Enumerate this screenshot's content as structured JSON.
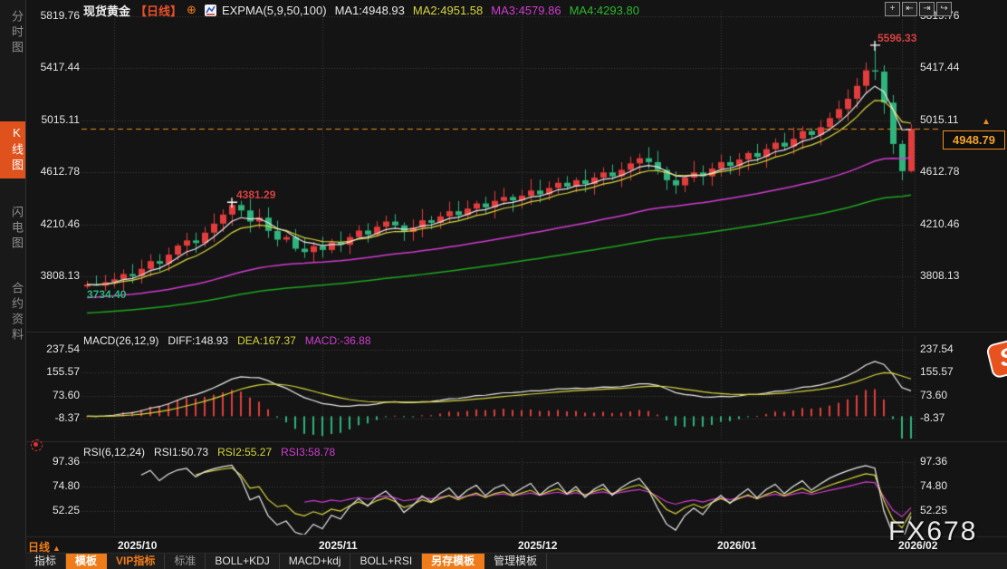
{
  "header": {
    "symbol": "现货黄金",
    "period_tag": "【日线】",
    "plus_icon": "⊕",
    "indicator_name": "EXPMA(5,9,50,100)",
    "ma1": "MA1:4948.93",
    "ma2": "MA2:4951.58",
    "ma3": "MA3:4579.86",
    "ma4": "MA4:4293.80"
  },
  "toolbar_icons": [
    {
      "name": "crosshair-icon",
      "glyph": "+"
    },
    {
      "name": "scale-left-icon",
      "glyph": "⇤"
    },
    {
      "name": "scale-right-icon",
      "glyph": "⇥"
    },
    {
      "name": "pan-right-icon",
      "glyph": "↪"
    }
  ],
  "sidebar": {
    "items": [
      {
        "label": "分时图",
        "active": false
      },
      {
        "label": "K线图",
        "active": true
      },
      {
        "label": "闪电图",
        "active": false
      },
      {
        "label": "合约资料",
        "active": false
      }
    ]
  },
  "main_chart": {
    "current_price": "4948.79",
    "price_marker_glyph": "▲",
    "annotations": {
      "high": {
        "label": "5596.33"
      },
      "oct_peak": {
        "label": "4381.29"
      },
      "start_low": {
        "label": "3734.40"
      }
    }
  },
  "macd": {
    "title": "MACD(26,12,9)",
    "diff_label": "DIFF:148.93",
    "dea_label": "DEA:167.37",
    "macd_label": "MACD:-36.88"
  },
  "rsi": {
    "title": "RSI(6,12,24)",
    "rsi1_label": "RSI1:50.73",
    "rsi2_label": "RSI2:55.27",
    "rsi3_label": "RSI3:58.78"
  },
  "x_axis": {
    "period_label": "日线",
    "period_arrow": "▲",
    "labels": [
      "2025/10",
      "2025/11",
      "2025/12",
      "2026/01",
      "2026/02"
    ]
  },
  "bottom_tabs": [
    {
      "label": "指标",
      "variant": "plain"
    },
    {
      "label": "模板",
      "variant": "active"
    },
    {
      "label": "VIP指标",
      "variant": "accent"
    },
    {
      "label": "标准",
      "variant": "muted"
    },
    {
      "label": "BOLL+KDJ",
      "variant": "plain"
    },
    {
      "label": "MACD+kdj",
      "variant": "plain"
    },
    {
      "label": "BOLL+RSI",
      "variant": "plain"
    },
    {
      "label": "另存模板",
      "variant": "active"
    },
    {
      "label": "管理模板",
      "variant": "plain"
    }
  ],
  "watermark": "FX678",
  "logo_letter": "S",
  "colors": {
    "up": "#e23d3c",
    "down": "#2eb47c",
    "ma1": "#e8e8e8",
    "ma2": "#d6d63e",
    "ma3": "#cf3ccf",
    "ma4": "#1fa51f",
    "accent_orange": "#ef7c1a",
    "price_line_orange": "#ef8c1e",
    "annotation_red": "#d84040",
    "annotation_green": "#2fb47d",
    "grid": "#3e3e3e",
    "background": "#141414"
  },
  "chart_data": {
    "type": "candlestick",
    "symbol": "现货黄金",
    "interval": "日线",
    "overlay_indicator": {
      "name": "EXPMA",
      "periods": [
        5,
        9,
        50,
        100
      ]
    },
    "sub_indicators": {
      "macd": [
        26,
        12,
        9
      ],
      "rsi": [
        6,
        12,
        24
      ]
    },
    "price_axis": [
      5819.76,
      5417.44,
      5015.11,
      4612.78,
      4210.46,
      3808.13
    ],
    "macd_axis": [
      237.54,
      155.57,
      73.6,
      -8.37
    ],
    "rsi_axis": [
      97.36,
      74.8,
      52.25
    ],
    "key_values": {
      "all_time_high": 5596.33,
      "oct_peak_high": 4381.29,
      "start_low": 3734.4,
      "last_price": 4948.79,
      "diff": 148.93,
      "dea": 167.37,
      "macd_bar": -36.88,
      "rsi1": 50.73,
      "rsi2": 55.27,
      "rsi3": 58.78
    },
    "month_start_indices": [
      3,
      26,
      48,
      70,
      90
    ],
    "closes": [
      3745,
      3736,
      3762,
      3785,
      3826,
      3810,
      3866,
      3926,
      3906,
      3976,
      4046,
      4086,
      4066,
      4146,
      4216,
      4286,
      4360,
      4318,
      4232,
      4262,
      4160,
      4092,
      4112,
      4022,
      3996,
      4042,
      4012,
      4072,
      4052,
      4112,
      4162,
      4132,
      4192,
      4232,
      4202,
      4152,
      4186,
      4242,
      4222,
      4272,
      4312,
      4282,
      4332,
      4372,
      4342,
      4392,
      4422,
      4396,
      4432,
      4472,
      4442,
      4492,
      4532,
      4502,
      4552,
      4522,
      4572,
      4612,
      4582,
      4632,
      4682,
      4722,
      4692,
      4632,
      4552,
      4512,
      4572,
      4612,
      4582,
      4642,
      4692,
      4662,
      4712,
      4762,
      4732,
      4792,
      4842,
      4812,
      4872,
      4932,
      4902,
      4962,
      5032,
      5102,
      5182,
      5282,
      5402,
      5392,
      5152,
      4832,
      4622,
      4948.79
    ]
  }
}
